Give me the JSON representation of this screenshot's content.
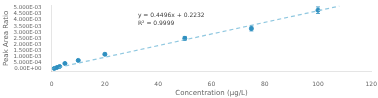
{
  "chart_data": {
    "type": "scatter",
    "xlabel": "Concentration (μg/L)",
    "ylabel": "Peak Area Ratio",
    "xlim": [
      0,
      120
    ],
    "ylim": [
      -0.0002,
      0.0052
    ],
    "xticks": [
      0,
      20,
      40,
      60,
      80,
      100,
      120
    ],
    "yticks": [
      {
        "value": 0,
        "label": "0.00E+00"
      },
      {
        "value": 0.0005,
        "label": "5.000E-04"
      },
      {
        "value": 0.001,
        "label": "1.000E-03"
      },
      {
        "value": 0.0015,
        "label": "1.500E-03"
      },
      {
        "value": 0.002,
        "label": "2.000E-03"
      },
      {
        "value": 0.0025,
        "label": "2.500E-03"
      },
      {
        "value": 0.003,
        "label": "3.000E-03"
      },
      {
        "value": 0.0035,
        "label": "3.500E-03"
      },
      {
        "value": 0.004,
        "label": "4.000E-03"
      },
      {
        "value": 0.0045,
        "label": "4.500E-03"
      },
      {
        "value": 0.005,
        "label": "5.000E-03"
      }
    ],
    "grid": false,
    "annotations": [
      {
        "text": "y = 0.4496x + 0.2232",
        "color": "#404040"
      },
      {
        "text": "R² = 0.9999",
        "color": "#404040"
      }
    ],
    "series": [
      {
        "type": "line",
        "x": [
          0,
          108
        ],
        "values": [
          5e-06,
          0.005135
        ],
        "color": "#90c8e0",
        "line_style": "dashed"
      },
      {
        "type": "scatter",
        "x": [
          1,
          2,
          3,
          5,
          10,
          20,
          50,
          75,
          100
        ],
        "values": [
          4e-05,
          0.00012,
          0.0002,
          0.00045,
          0.0007,
          0.0012,
          0.0025,
          0.0033,
          0.0048
        ],
        "error": [
          3.2e-05,
          3.6e-05,
          4e-05,
          5.25e-05,
          6.5e-05,
          9e-05,
          0.000155,
          0.000195,
          0.00027
        ],
        "color": "#3090c0",
        "marker": "circle"
      }
    ]
  }
}
